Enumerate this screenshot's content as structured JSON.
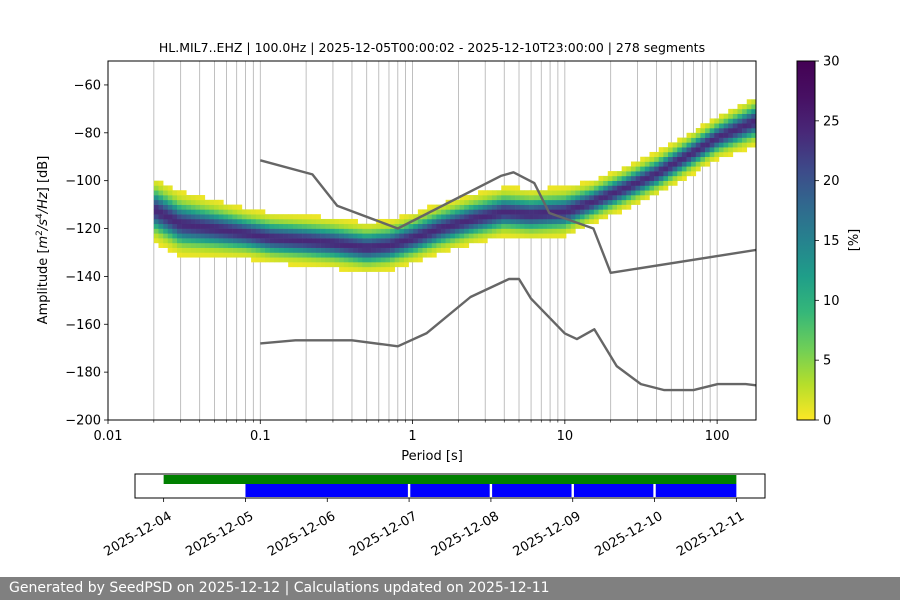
{
  "chart_data": [
    {
      "type": "heatmap",
      "title": "HL.MIL7..EHZ | 100.0Hz | 2025-12-05T00:00:02 - 2025-12-10T23:00:00 | 278 segments",
      "xlabel": "Period [s]",
      "ylabel_parts": [
        "Amplitude [",
        "m",
        "2",
        "/s",
        "4",
        "/Hz",
        "] [dB]"
      ],
      "x_scale": "log",
      "xlim": [
        0.01,
        180
      ],
      "ylim": [
        -200,
        -50
      ],
      "x_ticks": [
        0.01,
        0.1,
        1,
        10,
        100
      ],
      "x_tick_labels": [
        "0.01",
        "0.1",
        "1",
        "10",
        "100"
      ],
      "y_ticks": [
        -200,
        -180,
        -160,
        -140,
        -120,
        -100,
        -80,
        -60
      ],
      "y_tick_labels": [
        "−200",
        "−180",
        "−160",
        "−140",
        "−120",
        "−100",
        "−80",
        "−60"
      ],
      "grid": "vertical-x-log",
      "colormap": "viridis",
      "colorbar": {
        "label": "[%]",
        "range": [
          0,
          30
        ],
        "ticks": [
          0,
          5,
          10,
          15,
          20,
          25,
          30
        ],
        "tick_labels": [
          "0",
          "5",
          "10",
          "15",
          "20",
          "25",
          "30"
        ]
      },
      "density_ridge": {
        "period": [
          0.02,
          0.03,
          0.05,
          0.08,
          0.12,
          0.2,
          0.3,
          0.5,
          0.7,
          1.0,
          1.5,
          2.5,
          4,
          6,
          10,
          15,
          25,
          40,
          70,
          100,
          180
        ],
        "median_db": [
          -112,
          -118,
          -120,
          -122,
          -124,
          -125,
          -126,
          -128,
          -127,
          -124,
          -120,
          -116,
          -113,
          -114,
          -113,
          -109,
          -103,
          -97,
          -88,
          -82,
          -75
        ],
        "spread_db": [
          9,
          9,
          8,
          7,
          7,
          7,
          7,
          7,
          7,
          7,
          7,
          7,
          7,
          7,
          7,
          6,
          6,
          6,
          6,
          6,
          7
        ]
      },
      "noise_model_high": {
        "period": [
          0.1,
          0.22,
          0.32,
          0.8,
          3.8,
          4.6,
          6.3,
          7.9,
          15.4,
          20,
          354.8
        ],
        "db": [
          -91.5,
          -97.4,
          -110.5,
          -120,
          -98,
          -96.5,
          -101,
          -113.5,
          -120,
          -138.5,
          -126
        ]
      },
      "noise_model_low": {
        "period": [
          0.1,
          0.17,
          0.4,
          0.8,
          1.24,
          2.4,
          4.3,
          5.0,
          6.0,
          10.0,
          12.0,
          15.6,
          21.9,
          31.6,
          45,
          70,
          101,
          154,
          180
        ],
        "db": [
          -168,
          -166.7,
          -166.7,
          -169.2,
          -163.7,
          -148.6,
          -141.1,
          -141.1,
          -149.3,
          -163.8,
          -166.2,
          -162.1,
          -177.5,
          -185,
          -187.5,
          -187.5,
          -185,
          -185,
          -185.5
        ]
      }
    },
    {
      "type": "timeline",
      "x_tick_labels": [
        "2025-12-04",
        "2025-12-05",
        "2025-12-06",
        "2025-12-07",
        "2025-12-08",
        "2025-12-09",
        "2025-12-10",
        "2025-12-11"
      ],
      "range_days": [
        -0.35,
        7.35
      ],
      "tick_days": [
        0,
        1,
        2,
        3,
        4,
        5,
        6,
        7
      ],
      "available_data": {
        "color": "#008000",
        "start_day": 0,
        "end_day": 7.0
      },
      "processed_segments": {
        "color": "#0000ff",
        "start_day": 1.0,
        "end_day": 7.0,
        "gap_days": [
          3.0,
          4.0,
          5.0,
          6.0
        ]
      }
    }
  ],
  "footer": {
    "text": "Generated by SeedPSD on 2025-12-12 | Calculations updated on 2025-12-11"
  }
}
